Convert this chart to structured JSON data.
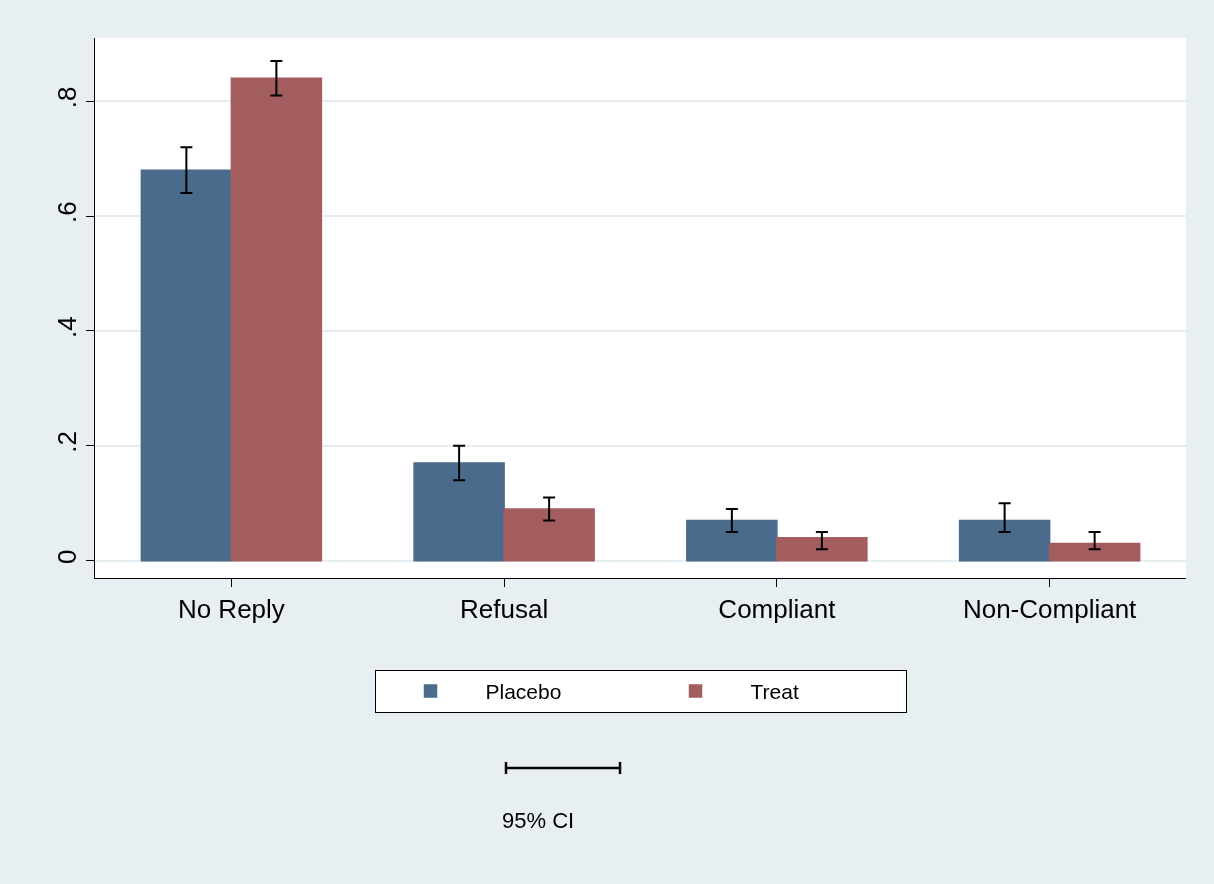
{
  "chart_data": {
    "type": "bar",
    "categories": [
      "No Reply",
      "Refusal",
      "Compliant",
      "Non-Compliant"
    ],
    "series": [
      {
        "name": "Placebo",
        "color": "#4a6b8c",
        "values": [
          0.68,
          0.17,
          0.07,
          0.07
        ],
        "errors": [
          [
            0.64,
            0.72
          ],
          [
            0.14,
            0.2
          ],
          [
            0.05,
            0.09
          ],
          [
            0.05,
            0.1
          ]
        ]
      },
      {
        "name": "Treat",
        "color": "#a45d5f",
        "values": [
          0.84,
          0.09,
          0.04,
          0.03
        ],
        "errors": [
          [
            0.81,
            0.87
          ],
          [
            0.07,
            0.11
          ],
          [
            0.02,
            0.05
          ],
          [
            0.02,
            0.05
          ]
        ]
      }
    ],
    "ylim": [
      -0.03,
      0.91
    ],
    "yticks": [
      0,
      {
        "value": 0.2,
        "label": ".2"
      },
      {
        "value": 0.4,
        "label": ".4"
      },
      {
        "value": 0.6,
        "label": ".6"
      },
      {
        "value": 0.8,
        "label": ".8"
      }
    ],
    "grid": "y",
    "legend": "bottom",
    "annotations": [
      "95% CI"
    ]
  }
}
